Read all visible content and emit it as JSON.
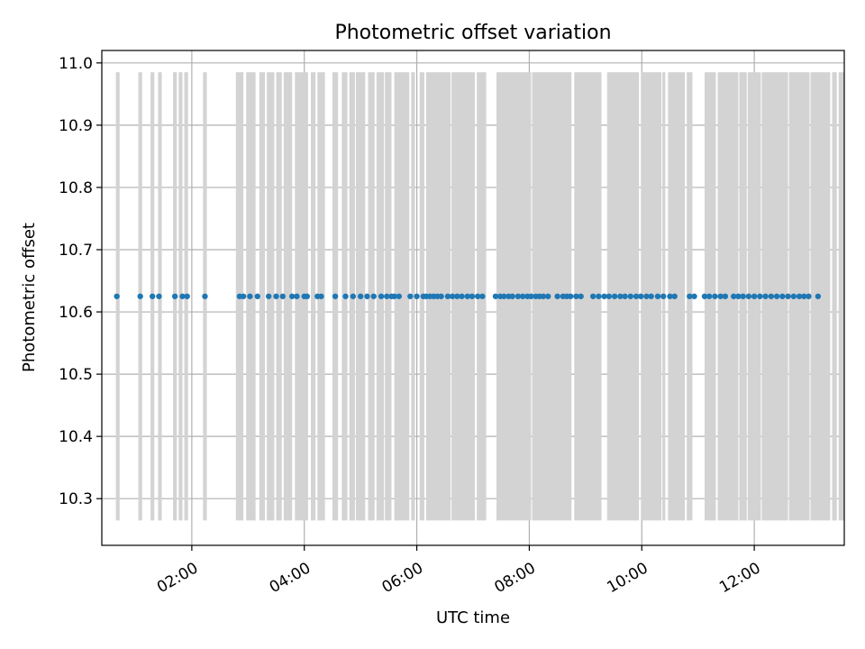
{
  "chart_data": {
    "type": "scatter",
    "title": "Photometric offset variation",
    "xlabel": "UTC time",
    "ylabel": "Photometric offset",
    "xlim": [
      "00:24",
      "13:36"
    ],
    "ylim": [
      10.225,
      11.02
    ],
    "xticks": [
      "02:00",
      "04:00",
      "06:00",
      "08:00",
      "10:00",
      "12:00"
    ],
    "yticks": [
      10.3,
      10.4,
      10.5,
      10.6,
      10.7,
      10.8,
      10.9,
      11.0
    ],
    "grid": true,
    "colors": {
      "points": "#1f77b4",
      "bands": "#d3d3d3",
      "grid": "#b0b0b0"
    },
    "band_y_range": [
      10.265,
      10.985
    ],
    "series": [
      {
        "x": [
          "00:40",
          "01:05",
          "01:18",
          "01:25",
          "01:42",
          "01:50",
          "01:55",
          "02:14",
          "02:51",
          "02:55",
          "03:02",
          "03:10",
          "03:22",
          "03:30",
          "03:37",
          "03:47",
          "03:52",
          "04:00",
          "04:03",
          "04:14",
          "04:18",
          "04:33",
          "04:44",
          "04:52",
          "05:00",
          "05:07",
          "05:14",
          "05:22",
          "05:28",
          "05:33",
          "05:36",
          "05:41",
          "05:53",
          "06:00",
          "06:07",
          "06:10",
          "06:14",
          "06:18",
          "06:22",
          "06:26",
          "06:33",
          "06:38",
          "06:43",
          "06:48",
          "06:54",
          "06:59",
          "07:05",
          "07:10",
          "07:24",
          "07:29",
          "07:33",
          "07:38",
          "07:42",
          "07:48",
          "07:53",
          "07:58",
          "08:02",
          "08:07",
          "08:11",
          "08:15",
          "08:20",
          "08:30",
          "08:36",
          "08:40",
          "08:44",
          "08:50",
          "08:55",
          "09:08",
          "09:14",
          "09:20",
          "09:25",
          "09:31",
          "09:37",
          "09:42",
          "09:48",
          "09:54",
          "09:59",
          "10:05",
          "10:10",
          "10:17",
          "10:23",
          "10:30",
          "10:35",
          "10:51",
          "10:56",
          "11:07",
          "11:12",
          "11:18",
          "11:24",
          "11:29",
          "11:38",
          "11:43",
          "11:48",
          "11:54",
          "12:00",
          "12:06",
          "12:12",
          "12:18",
          "12:24",
          "12:30",
          "12:36",
          "12:42",
          "12:48",
          "12:53",
          "12:58",
          "13:08"
        ],
        "y": [
          10.625,
          10.625,
          10.625,
          10.625,
          10.625,
          10.625,
          10.625,
          10.625,
          10.625,
          10.625,
          10.625,
          10.625,
          10.625,
          10.625,
          10.625,
          10.625,
          10.625,
          10.625,
          10.625,
          10.625,
          10.625,
          10.625,
          10.625,
          10.625,
          10.625,
          10.625,
          10.625,
          10.625,
          10.625,
          10.625,
          10.625,
          10.625,
          10.625,
          10.625,
          10.625,
          10.625,
          10.625,
          10.625,
          10.625,
          10.625,
          10.625,
          10.625,
          10.625,
          10.625,
          10.625,
          10.625,
          10.625,
          10.625,
          10.625,
          10.625,
          10.625,
          10.625,
          10.625,
          10.625,
          10.625,
          10.625,
          10.625,
          10.625,
          10.625,
          10.625,
          10.625,
          10.625,
          10.625,
          10.625,
          10.625,
          10.625,
          10.625,
          10.625,
          10.625,
          10.625,
          10.625,
          10.625,
          10.625,
          10.625,
          10.625,
          10.625,
          10.625,
          10.625,
          10.625,
          10.625,
          10.625,
          10.625,
          10.625,
          10.625,
          10.625,
          10.625,
          10.625,
          10.625,
          10.625,
          10.625,
          10.625,
          10.625,
          10.625,
          10.625,
          10.625,
          10.625,
          10.625,
          10.625,
          10.625,
          10.625,
          10.625,
          10.625,
          10.625,
          10.625,
          10.625,
          10.625
        ]
      }
    ],
    "bands": [
      [
        "00:39",
        "00:43"
      ],
      [
        "01:03",
        "01:07"
      ],
      [
        "01:16",
        "01:20"
      ],
      [
        "01:24",
        "01:28"
      ],
      [
        "01:40",
        "01:44"
      ],
      [
        "01:46",
        "01:50"
      ],
      [
        "01:52",
        "01:56"
      ],
      [
        "02:12",
        "02:16"
      ],
      [
        "02:47",
        "02:55"
      ],
      [
        "02:58",
        "03:08"
      ],
      [
        "03:12",
        "03:18"
      ],
      [
        "03:20",
        "03:28"
      ],
      [
        "03:30",
        "03:36"
      ],
      [
        "03:38",
        "03:47"
      ],
      [
        "03:50",
        "04:04"
      ],
      [
        "04:07",
        "04:12"
      ],
      [
        "04:14",
        "04:22"
      ],
      [
        "04:30",
        "04:36"
      ],
      [
        "04:40",
        "04:46"
      ],
      [
        "04:48",
        "04:54"
      ],
      [
        "04:55",
        "05:05"
      ],
      [
        "05:08",
        "05:15"
      ],
      [
        "05:17",
        "05:25"
      ],
      [
        "05:26",
        "05:33"
      ],
      [
        "05:36",
        "05:52"
      ],
      [
        "05:54",
        "05:58"
      ],
      [
        "06:03",
        "06:08"
      ],
      [
        "06:10",
        "06:36"
      ],
      [
        "06:37",
        "07:02"
      ],
      [
        "07:04",
        "07:14"
      ],
      [
        "07:25",
        "08:02"
      ],
      [
        "08:03",
        "08:45"
      ],
      [
        "08:48",
        "09:17"
      ],
      [
        "09:23",
        "09:57"
      ],
      [
        "09:59",
        "10:21"
      ],
      [
        "10:22",
        "10:25"
      ],
      [
        "10:28",
        "10:46"
      ],
      [
        "10:48",
        "10:54"
      ],
      [
        "11:07",
        "11:19"
      ],
      [
        "11:21",
        "11:43"
      ],
      [
        "11:44",
        "11:52"
      ],
      [
        "11:53",
        "12:07"
      ],
      [
        "12:08",
        "12:36"
      ],
      [
        "12:37",
        "12:59"
      ],
      [
        "13:00",
        "13:21"
      ],
      [
        "13:23",
        "13:28"
      ],
      [
        "13:30",
        "13:36"
      ]
    ]
  }
}
